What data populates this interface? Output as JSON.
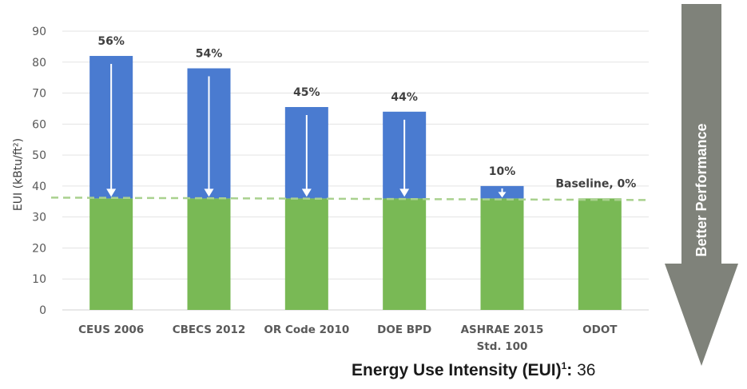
{
  "chart_data": {
    "type": "bar",
    "ylabel": "EUI (kBtu/ft²)",
    "ylim": [
      0,
      90
    ],
    "yticks": [
      0,
      10,
      20,
      30,
      40,
      50,
      60,
      70,
      80,
      90
    ],
    "grid": true,
    "categories": [
      "CEUS 2006",
      "CBECS 2012",
      "OR Code 2010",
      "DOE BPD",
      "ASHRAE 2015 Std. 100",
      "ODOT"
    ],
    "category_lines": [
      [
        "CEUS 2006"
      ],
      [
        "CBECS 2012"
      ],
      [
        "OR Code 2010"
      ],
      [
        "DOE BPD"
      ],
      [
        "ASHRAE 2015",
        "Std. 100"
      ],
      [
        "ODOT"
      ]
    ],
    "values": [
      82,
      78,
      65.5,
      64,
      40,
      36
    ],
    "baseline": 36,
    "labels": [
      "56%",
      "54%",
      "45%",
      "44%",
      "10%",
      "Baseline, 0%"
    ],
    "colors": {
      "above_baseline": "#4a7bd0",
      "baseline_part": "#79b955",
      "baseline_line": "#a9d18e",
      "arrow": "#7f827a"
    },
    "side_arrow_text": "Better Performance"
  },
  "footer": {
    "label": "Energy Use Intensity (EUI)",
    "sup": "1",
    "colon": ":",
    "value": "36"
  }
}
